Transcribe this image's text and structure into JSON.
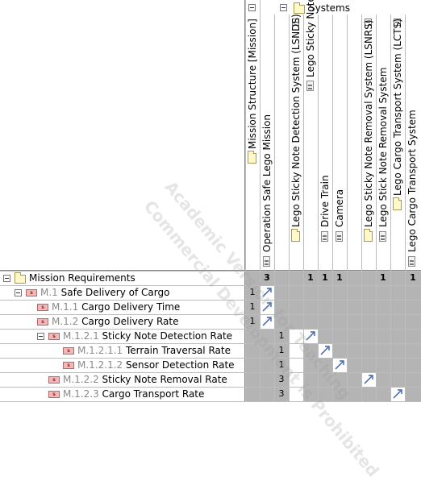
{
  "columns": {
    "systems_title": "Systems",
    "items": [
      {
        "label": "Mission Structure [Mission]",
        "type": "folder"
      },
      {
        "label": "Operation Safe Lego Mission",
        "type": "element"
      },
      {
        "label": "Lego Sticky Note Detection System (LSNDS)",
        "type": "folder"
      },
      {
        "label": "Lego Sticky Note Detection System",
        "type": "element"
      },
      {
        "label": "Drive Train",
        "type": "element"
      },
      {
        "label": "Camera",
        "type": "element"
      },
      {
        "label": "Lego Sticky Note Removal System (LSNRS)",
        "type": "folder"
      },
      {
        "label": "Lego Stick Note Removal System",
        "type": "element"
      },
      {
        "label": "Lego Cargo Transport System (LCTS)",
        "type": "folder"
      },
      {
        "label": "Lego Cargo Transport System",
        "type": "element"
      }
    ],
    "counts": [
      "",
      "3",
      "",
      "1",
      "1",
      "1",
      "",
      "1",
      "",
      "1"
    ]
  },
  "rows": [
    {
      "num": "",
      "label": "Mission Requirements",
      "type": "folder",
      "level": 0
    },
    {
      "num": "M.1",
      "label": "Safe Delivery of Cargo",
      "type": "req",
      "level": 1
    },
    {
      "num": "M.1.1",
      "label": "Cargo Delivery Time",
      "type": "req",
      "level": 2
    },
    {
      "num": "M.1.2",
      "label": "Cargo Delivery Rate",
      "type": "req",
      "level": 2
    },
    {
      "num": "M.1.2.1",
      "label": "Sticky Note Detection Rate",
      "type": "req",
      "level": 3
    },
    {
      "num": "M.1.2.1.1",
      "label": "Terrain Traversal Rate",
      "type": "req",
      "level": 4
    },
    {
      "num": "M.1.2.1.2",
      "label": "Sensor Detection Rate",
      "type": "req",
      "level": 4
    },
    {
      "num": "M.1.2.2",
      "label": "Sticky Note Removal Rate",
      "type": "req",
      "level": 3
    },
    {
      "num": "M.1.2.3",
      "label": "Cargo Transport Rate",
      "type": "req",
      "level": 3
    }
  ],
  "row_counts": [
    [],
    [
      1
    ],
    [
      1
    ],
    [
      1
    ],
    [
      3,
      1
    ],
    [
      3,
      1
    ],
    [
      3,
      1
    ],
    [
      3
    ],
    [
      3
    ]
  ],
  "stereo_tag": "s",
  "watermark": {
    "line1": "Academic Version for Teaching",
    "line2": "Commercial Development is Prohibited"
  }
}
